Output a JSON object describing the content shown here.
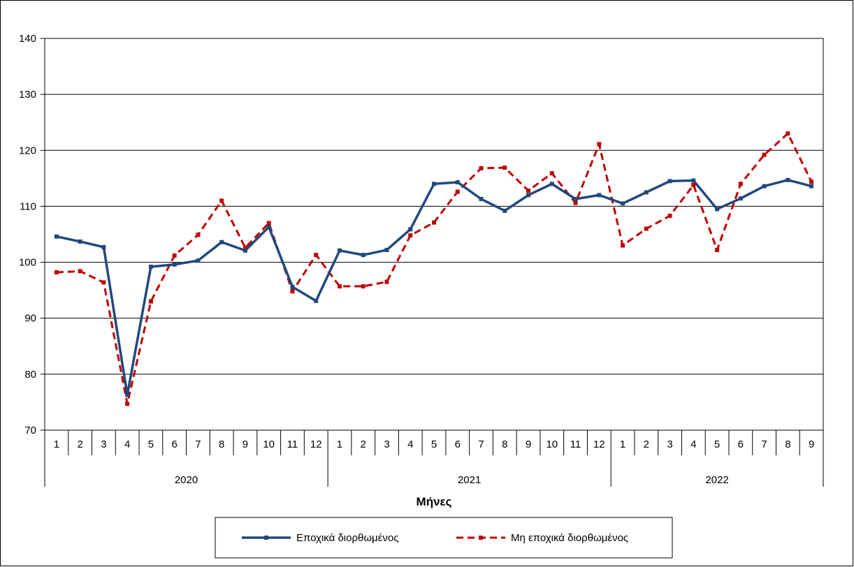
{
  "chart_data": {
    "type": "line",
    "xlabel": "Μήνες",
    "ylabel": "",
    "ylim": [
      70,
      140
    ],
    "yticks": [
      70,
      80,
      90,
      100,
      110,
      120,
      130,
      140
    ],
    "grid": true,
    "legend_position": "bottom",
    "months": [
      "1",
      "2",
      "3",
      "4",
      "5",
      "6",
      "7",
      "8",
      "9",
      "10",
      "11",
      "12",
      "1",
      "2",
      "3",
      "4",
      "5",
      "6",
      "7",
      "8",
      "9",
      "10",
      "11",
      "12",
      "1",
      "2",
      "3",
      "4",
      "5",
      "6",
      "7",
      "8",
      "9"
    ],
    "year_groups": [
      {
        "label": "2020",
        "months": 12
      },
      {
        "label": "2021",
        "months": 12
      },
      {
        "label": "2022",
        "months": 9
      }
    ],
    "series": [
      {
        "name": "Εποχικά διορθωμένος",
        "color": "#1F497D",
        "style": "solid",
        "values": [
          104.6,
          103.7,
          102.7,
          76.3,
          99.2,
          99.6,
          100.3,
          103.6,
          102.1,
          106.3,
          95.6,
          93.1,
          102.1,
          101.3,
          102.2,
          105.9,
          114.0,
          114.3,
          111.3,
          109.2,
          112.0,
          114.0,
          111.3,
          112.0,
          110.5,
          112.5,
          114.5,
          114.6,
          109.5,
          111.4,
          113.6,
          114.7,
          113.6
        ]
      },
      {
        "name": "Μη εποχικά διορθωμένος",
        "color": "#C00000",
        "style": "dashed",
        "values": [
          98.2,
          98.4,
          96.4,
          74.7,
          93.0,
          101.2,
          104.9,
          111.0,
          102.6,
          107.0,
          94.8,
          101.3,
          95.7,
          95.7,
          96.5,
          104.8,
          107.1,
          112.6,
          116.8,
          116.9,
          112.8,
          115.9,
          110.6,
          121.1,
          103.0,
          106.0,
          108.3,
          113.8,
          102.2,
          114.0,
          119.2,
          123.0,
          114.4
        ]
      }
    ]
  }
}
